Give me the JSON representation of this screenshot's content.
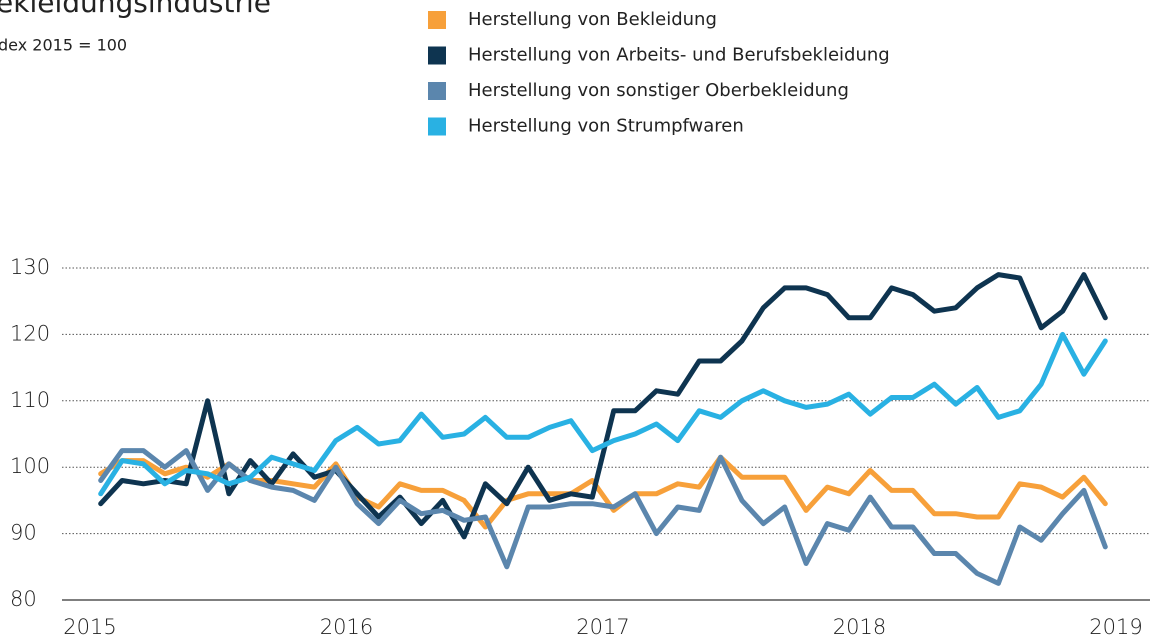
{
  "chart_data": {
    "type": "line",
    "title": "ekleidungsindustrie",
    "subtitle": "dex 2015 = 100",
    "xlim": [
      2015,
      2019
    ],
    "xticks": [
      2015,
      2016,
      2017,
      2018,
      2019
    ],
    "ylim": [
      80,
      130
    ],
    "yticks": [
      80,
      90,
      100,
      110,
      120,
      130
    ],
    "grid": true,
    "legend": "top",
    "series": [
      {
        "name": "Herstellung von Bekleidung",
        "color": "#f7a03a",
        "values": [
          99,
          101,
          101,
          99,
          100,
          98.5,
          100.5,
          98,
          98,
          97.5,
          97,
          100.5,
          95.5,
          94,
          97.5,
          96.5,
          96.5,
          95,
          91,
          95,
          96,
          96,
          96,
          98,
          93.5,
          96,
          96,
          97.5,
          97,
          101.5,
          98.5,
          98.5,
          98.5,
          93.5,
          97,
          96,
          99.5,
          96.5,
          96.5,
          93,
          93,
          92.5,
          92.5,
          97.5,
          97,
          95.5,
          98.5,
          94.5
        ]
      },
      {
        "name": "Herstellung von Arbeits- und Berufsbekleidung",
        "color": "#0e3450",
        "values": [
          94.5,
          98,
          97.5,
          98,
          97.5,
          110,
          96,
          101,
          97.5,
          102,
          98.5,
          99.5,
          96,
          92.5,
          95.5,
          91.5,
          95,
          89.5,
          97.5,
          94.5,
          100,
          95,
          96,
          95.5,
          108.5,
          108.5,
          111.5,
          111,
          116,
          116,
          119,
          124,
          127,
          127,
          126,
          122.5,
          122.5,
          127,
          126,
          123.5,
          124,
          127,
          129,
          128.5,
          121,
          123.5,
          129,
          122.5
        ]
      },
      {
        "name": "Herstellung von sonstiger Oberbekleidung",
        "color": "#5b86ad",
        "values": [
          98,
          102.5,
          102.5,
          100,
          102.5,
          96.5,
          100.5,
          98,
          97,
          96.5,
          95,
          100,
          94.5,
          91.5,
          95,
          93,
          93.5,
          92,
          92.5,
          85,
          94,
          94,
          94.5,
          94.5,
          94,
          96,
          90,
          94,
          93.5,
          101.5,
          95,
          91.5,
          94,
          85.5,
          91.5,
          90.5,
          95.5,
          91,
          91,
          87,
          87,
          84,
          82.5,
          91,
          89,
          93,
          96.5,
          88
        ]
      },
      {
        "name": "Herstellung von Strumpfwaren",
        "color": "#29b1e3",
        "values": [
          96,
          101,
          100.5,
          97.5,
          99.5,
          99,
          97.5,
          98.5,
          101.5,
          100.5,
          99.5,
          104,
          106,
          103.5,
          104,
          108,
          104.5,
          105,
          107.5,
          104.5,
          104.5,
          106,
          107,
          102.5,
          104,
          105,
          106.5,
          104,
          108.5,
          107.5,
          110,
          111.5,
          110,
          109,
          109.5,
          111,
          108,
          110.5,
          110.5,
          112.5,
          109.5,
          112,
          107.5,
          108.5,
          112.5,
          120,
          114,
          119
        ]
      }
    ]
  }
}
